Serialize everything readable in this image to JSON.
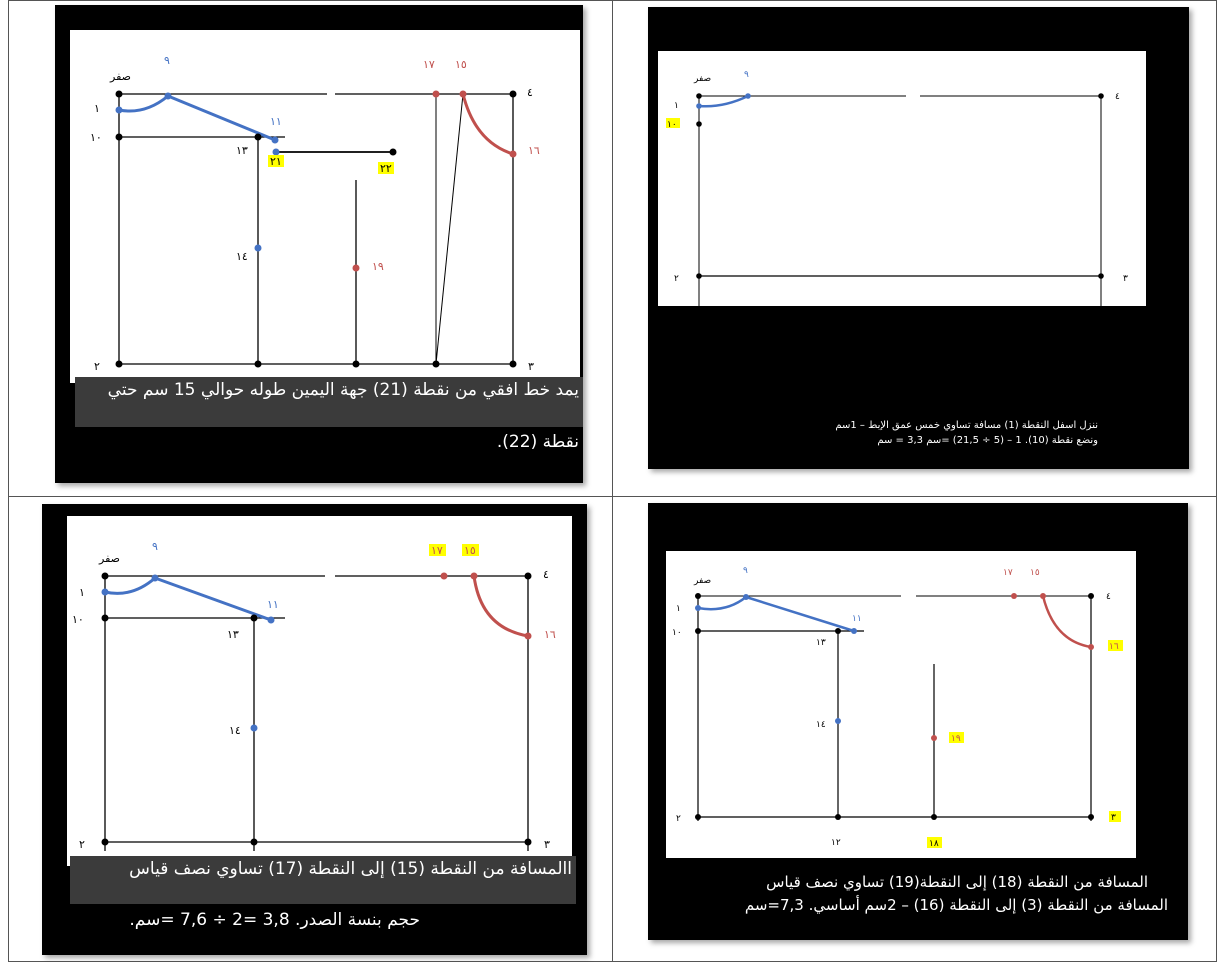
{
  "colors": {
    "blue": "#4472c4",
    "red": "#c0504d",
    "highlight": "#ffff00",
    "frame": "#000000"
  },
  "panel1": {
    "labels": {
      "zero": "صفر",
      "p1": "١",
      "p2": "٢",
      "p3": "٣",
      "p4": "٤",
      "p9": "٩",
      "p10": "١٠",
      "p11": "١١",
      "p13": "١٣",
      "p14": "١٤",
      "p15": "١٥",
      "p16": "١٦",
      "p17": "١٧",
      "p19": "١٩",
      "p21": "٢١",
      "p22": "٢٢"
    },
    "caption_line1": "يمد خط افقي من نقطة (21) جهة اليمين طوله حوالي 15 سم حتي",
    "caption_line2": "نقطة (22)."
  },
  "panel2": {
    "labels": {
      "zero": "صفر",
      "p1": "١",
      "p2": "٢",
      "p3": "٣",
      "p4": "٤",
      "p9": "٩",
      "p10": "١٠"
    },
    "caption_line1": "ننزل اسفل النقطة (1) مسافة تساوي خمس عمق الإبط – 1سم",
    "caption_line2": "ونضع نقطة (10).  1 – (5 ÷ 21,5) =سم 3,3 = سم"
  },
  "panel3": {
    "labels": {
      "zero": "صفر",
      "p1": "١",
      "p2": "٢",
      "p3": "٣",
      "p4": "٤",
      "p9": "٩",
      "p10": "١٠",
      "p11": "١١",
      "p13": "١٣",
      "p14": "١٤",
      "p15": "١٥",
      "p16": "١٦",
      "p17": "١٧"
    },
    "caption_line1": "االمسافة من النقطة (15) إلى النقطة (17) تساوي نصف قياس",
    "caption_line2": "حجم بنسة الصدر.   3,8 =2 ÷ 7,6 =سم."
  },
  "panel4": {
    "labels": {
      "zero": "صفر",
      "p1": "١",
      "p2": "٢",
      "p3": "٣",
      "p4": "٤",
      "p9": "٩",
      "p10": "١٠",
      "p11": "١١",
      "p12": "١٢",
      "p13": "١٣",
      "p14": "١٤",
      "p15": "١٥",
      "p16": "١٦",
      "p17": "١٧",
      "p18": "١٨",
      "p19": "١٩"
    },
    "caption_line1": "المسافة من النقطة (18) إلى النقطة(19) تساوي نصف قياس",
    "caption_line2": "المسافة من النقطة (3) إلى النقطة (16) – 2سم أساسي. 7,3=سم"
  }
}
